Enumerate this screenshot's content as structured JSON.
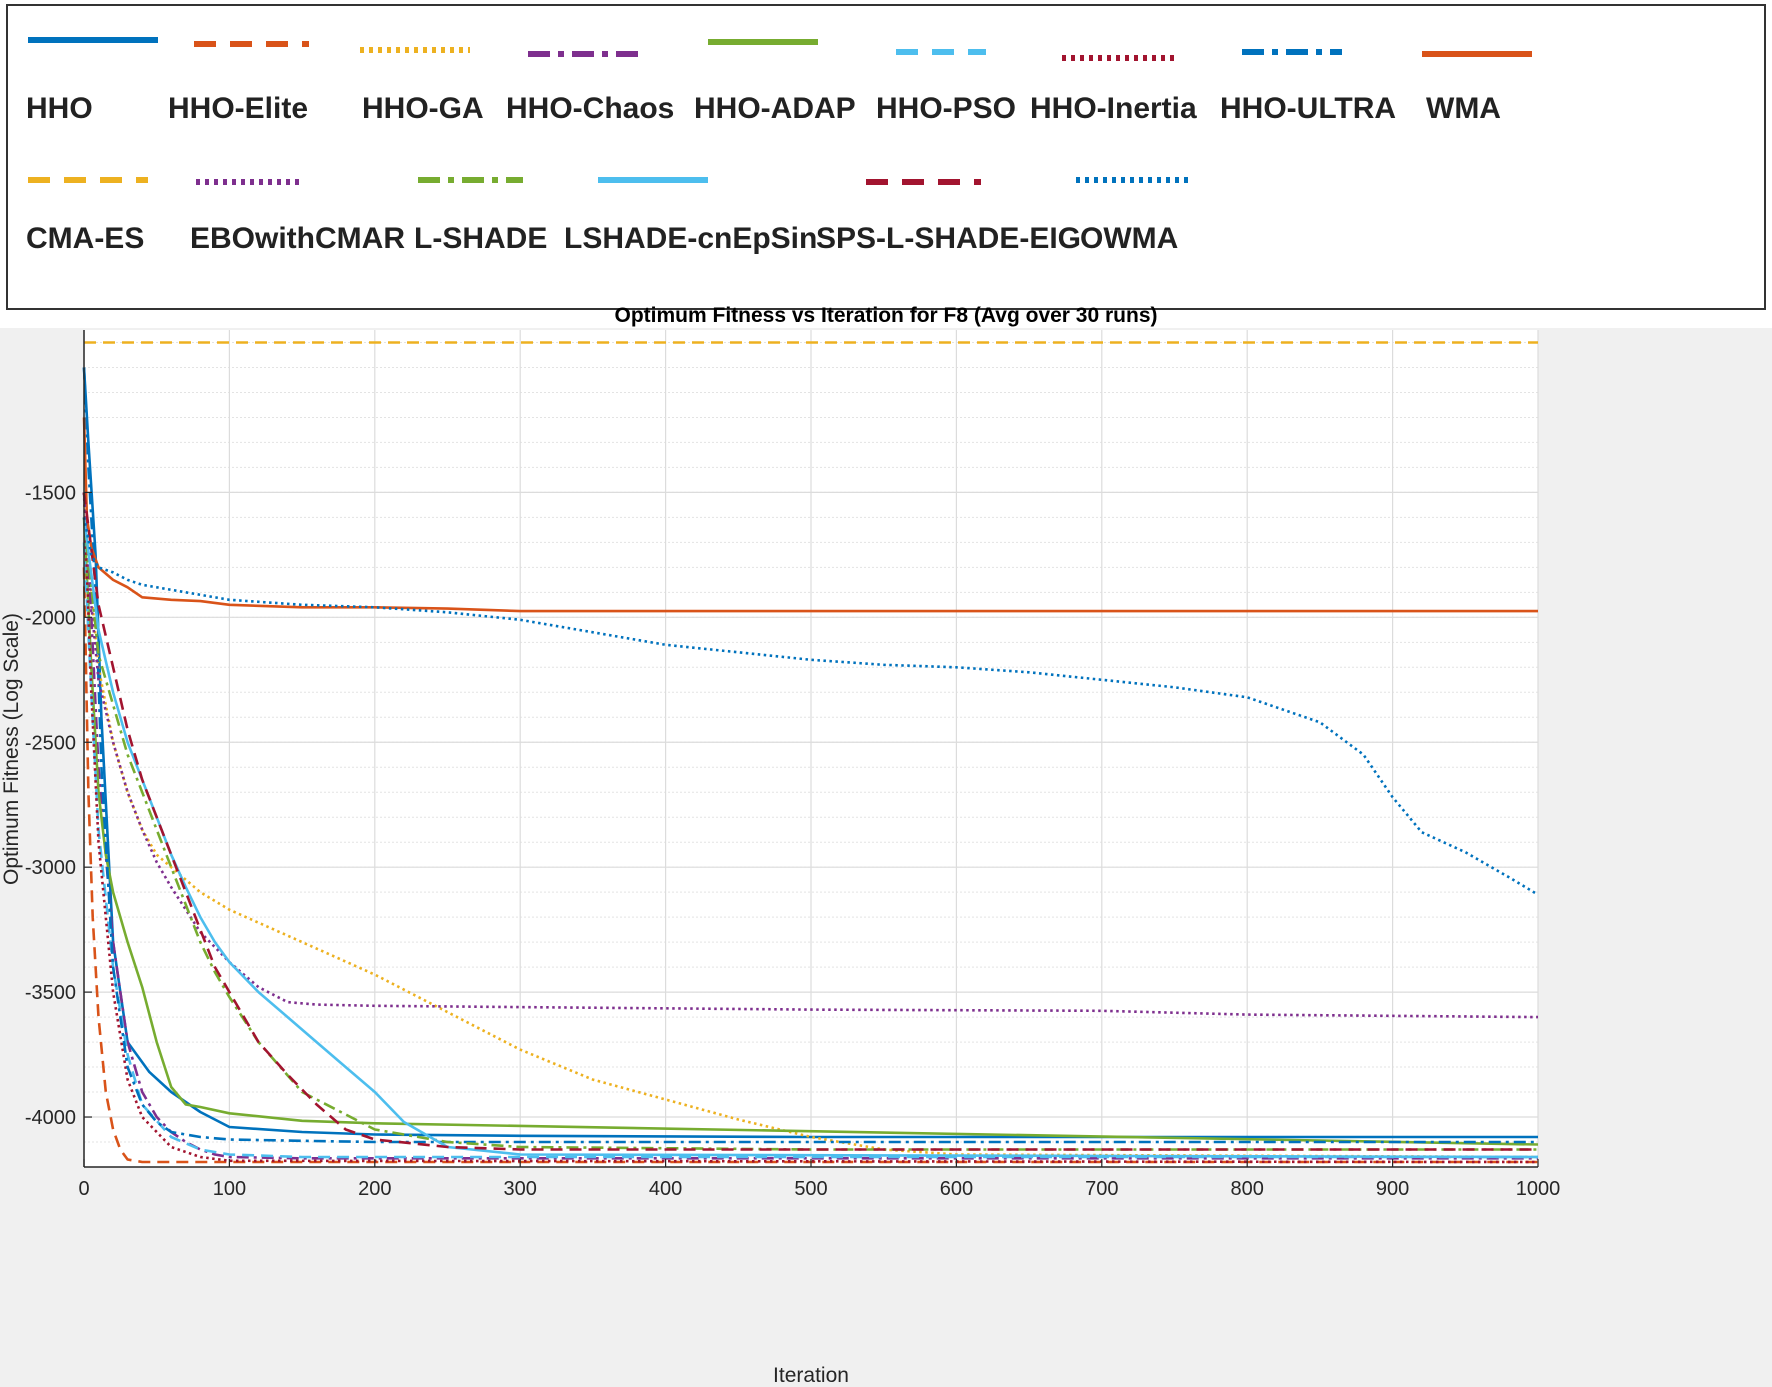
{
  "chart_data": {
    "type": "line",
    "title": "Optimum Fitness vs Iteration for F8 (Avg over 30 runs)",
    "xlabel": "Iteration",
    "ylabel": "Optimum Fitness (Log Scale)",
    "xlim": [
      0,
      1000
    ],
    "ylim": [
      -4200,
      -850
    ],
    "xticks": [
      0,
      100,
      200,
      300,
      400,
      500,
      600,
      700,
      800,
      900,
      1000
    ],
    "yticks": [
      -4000,
      -3500,
      -3000,
      -2500,
      -2000,
      -1500
    ],
    "grid": true,
    "legend_position": "top (separate box, 2 rows)",
    "series": [
      {
        "name": "HHO",
        "color": "#0072BD",
        "dash": "solid",
        "x": [
          0,
          3,
          8,
          12,
          20,
          30,
          45,
          60,
          80,
          100,
          150,
          200,
          300,
          500,
          1000
        ],
        "y": [
          -1000,
          -1300,
          -1750,
          -2400,
          -3300,
          -3700,
          -3820,
          -3900,
          -3980,
          -4040,
          -4060,
          -4070,
          -4075,
          -4080,
          -4080
        ]
      },
      {
        "name": "HHO-Elite",
        "color": "#D95319",
        "dash": "dash",
        "x": [
          0,
          1,
          3,
          6,
          10,
          15,
          20,
          25,
          30,
          40,
          60,
          100,
          1000
        ],
        "y": [
          -1800,
          -2100,
          -2700,
          -3200,
          -3600,
          -3900,
          -4050,
          -4130,
          -4170,
          -4180,
          -4180,
          -4180,
          -4180
        ]
      },
      {
        "name": "HHO-GA",
        "color": "#EDB120",
        "dash": "dot",
        "x": [
          0,
          5,
          10,
          20,
          30,
          40,
          50,
          60,
          80,
          100,
          150,
          200,
          250,
          300,
          350,
          400,
          450,
          500,
          550,
          600,
          1000
        ],
        "y": [
          -1600,
          -1900,
          -2200,
          -2500,
          -2700,
          -2850,
          -2950,
          -3000,
          -3100,
          -3170,
          -3300,
          -3430,
          -3580,
          -3730,
          -3850,
          -3930,
          -4010,
          -4080,
          -4130,
          -4150,
          -4160
        ]
      },
      {
        "name": "HHO-Chaos",
        "color": "#7E2F8E",
        "dash": "dashdot",
        "x": [
          0,
          5,
          10,
          20,
          30,
          40,
          50,
          60,
          70,
          80,
          90,
          100,
          150,
          1000
        ],
        "y": [
          -1500,
          -2000,
          -2600,
          -3300,
          -3700,
          -3900,
          -4000,
          -4060,
          -4100,
          -4130,
          -4150,
          -4160,
          -4165,
          -4165
        ]
      },
      {
        "name": "HHO-ADAP",
        "color": "#77AC30",
        "dash": "solid",
        "x": [
          0,
          5,
          10,
          15,
          20,
          30,
          40,
          50,
          60,
          70,
          80,
          100,
          150,
          200,
          1000
        ],
        "y": [
          -1600,
          -2200,
          -2700,
          -2950,
          -3100,
          -3300,
          -3480,
          -3700,
          -3880,
          -3950,
          -3960,
          -3985,
          -4015,
          -4025,
          -4110
        ]
      },
      {
        "name": "HHO-PSO",
        "color": "#4DBEEE",
        "dash": "dash",
        "x": [
          0,
          5,
          10,
          20,
          30,
          40,
          60,
          80,
          100,
          150,
          1000
        ],
        "y": [
          -1700,
          -2300,
          -2850,
          -3400,
          -3750,
          -3950,
          -4080,
          -4130,
          -4150,
          -4160,
          -4160
        ]
      },
      {
        "name": "HHO-Inertia",
        "color": "#A2142F",
        "dash": "dot",
        "x": [
          0,
          5,
          10,
          20,
          30,
          40,
          60,
          80,
          100,
          1000
        ],
        "y": [
          -1500,
          -2300,
          -2900,
          -3500,
          -3850,
          -4000,
          -4120,
          -4160,
          -4175,
          -4180
        ]
      },
      {
        "name": "HHO-ULTRA",
        "color": "#0072BD",
        "dash": "dashdot",
        "x": [
          0,
          3,
          8,
          12,
          20,
          30,
          40,
          50,
          60,
          80,
          100,
          150,
          200,
          1000
        ],
        "y": [
          -1000,
          -1400,
          -1900,
          -2600,
          -3400,
          -3800,
          -3950,
          -4020,
          -4060,
          -4080,
          -4090,
          -4095,
          -4100,
          -4100
        ]
      },
      {
        "name": "WMA",
        "color": "#D95319",
        "dash": "solid",
        "x": [
          0,
          2,
          5,
          10,
          20,
          30,
          40,
          60,
          80,
          100,
          150,
          200,
          250,
          300,
          1000
        ],
        "y": [
          -1200,
          -1600,
          -1720,
          -1800,
          -1850,
          -1880,
          -1920,
          -1930,
          -1935,
          -1950,
          -1960,
          -1960,
          -1965,
          -1975,
          -1975
        ]
      },
      {
        "name": "CMA-ES",
        "color": "#EDB120",
        "dash": "dash",
        "x": [
          0,
          1000
        ],
        "y": [
          -900,
          -900
        ]
      },
      {
        "name": "EBOwithCMAR",
        "color": "#7E2F8E",
        "dash": "dot",
        "x": [
          0,
          5,
          10,
          20,
          30,
          40,
          50,
          60,
          70,
          80,
          100,
          120,
          140,
          160,
          200,
          300,
          500,
          700,
          800,
          1000
        ],
        "y": [
          -1500,
          -1950,
          -2250,
          -2500,
          -2700,
          -2850,
          -2980,
          -3080,
          -3170,
          -3260,
          -3380,
          -3480,
          -3540,
          -3550,
          -3555,
          -3560,
          -3570,
          -3575,
          -3590,
          -3600
        ]
      },
      {
        "name": "L-SHADE",
        "color": "#77AC30",
        "dash": "dashdot",
        "x": [
          0,
          10,
          20,
          30,
          40,
          50,
          60,
          70,
          80,
          90,
          100,
          120,
          150,
          200,
          250,
          300,
          500,
          1000
        ],
        "y": [
          -1600,
          -2150,
          -2350,
          -2550,
          -2700,
          -2850,
          -3000,
          -3150,
          -3300,
          -3420,
          -3520,
          -3700,
          -3900,
          -4050,
          -4100,
          -4120,
          -4130,
          -4130
        ]
      },
      {
        "name": "LSHADE-cnEpSin",
        "color": "#4DBEEE",
        "dash": "solid",
        "x": [
          0,
          10,
          20,
          30,
          40,
          50,
          60,
          70,
          80,
          90,
          100,
          120,
          140,
          160,
          180,
          200,
          220,
          250,
          300,
          1000
        ],
        "y": [
          -1600,
          -2050,
          -2300,
          -2500,
          -2650,
          -2800,
          -2950,
          -3080,
          -3200,
          -3300,
          -3380,
          -3500,
          -3600,
          -3700,
          -3800,
          -3900,
          -4020,
          -4120,
          -4150,
          -4160
        ]
      },
      {
        "name": "SPS-L-SHADE-EIG",
        "color": "#A2142F",
        "dash": "dash",
        "x": [
          0,
          10,
          20,
          30,
          40,
          50,
          60,
          70,
          80,
          90,
          100,
          120,
          140,
          160,
          180,
          200,
          250,
          300,
          1000
        ],
        "y": [
          -1500,
          -1950,
          -2200,
          -2450,
          -2650,
          -2800,
          -2950,
          -3100,
          -3250,
          -3400,
          -3500,
          -3700,
          -3830,
          -3950,
          -4050,
          -4090,
          -4120,
          -4130,
          -4130
        ]
      },
      {
        "name": "OWMA",
        "color": "#0072BD",
        "dash": "dot",
        "x": [
          0,
          5,
          10,
          20,
          30,
          40,
          50,
          60,
          80,
          100,
          150,
          200,
          250,
          300,
          350,
          400,
          450,
          500,
          550,
          600,
          650,
          700,
          750,
          800,
          850,
          880,
          900,
          920,
          950,
          980,
          1000
        ],
        "y": [
          -1600,
          -1750,
          -1800,
          -1820,
          -1850,
          -1870,
          -1880,
          -1890,
          -1910,
          -1930,
          -1950,
          -1960,
          -1980,
          -2010,
          -2060,
          -2110,
          -2140,
          -2170,
          -2190,
          -2200,
          -2220,
          -2250,
          -2280,
          -2320,
          -2420,
          -2550,
          -2720,
          -2860,
          -2940,
          -3040,
          -3110
        ]
      }
    ]
  }
}
